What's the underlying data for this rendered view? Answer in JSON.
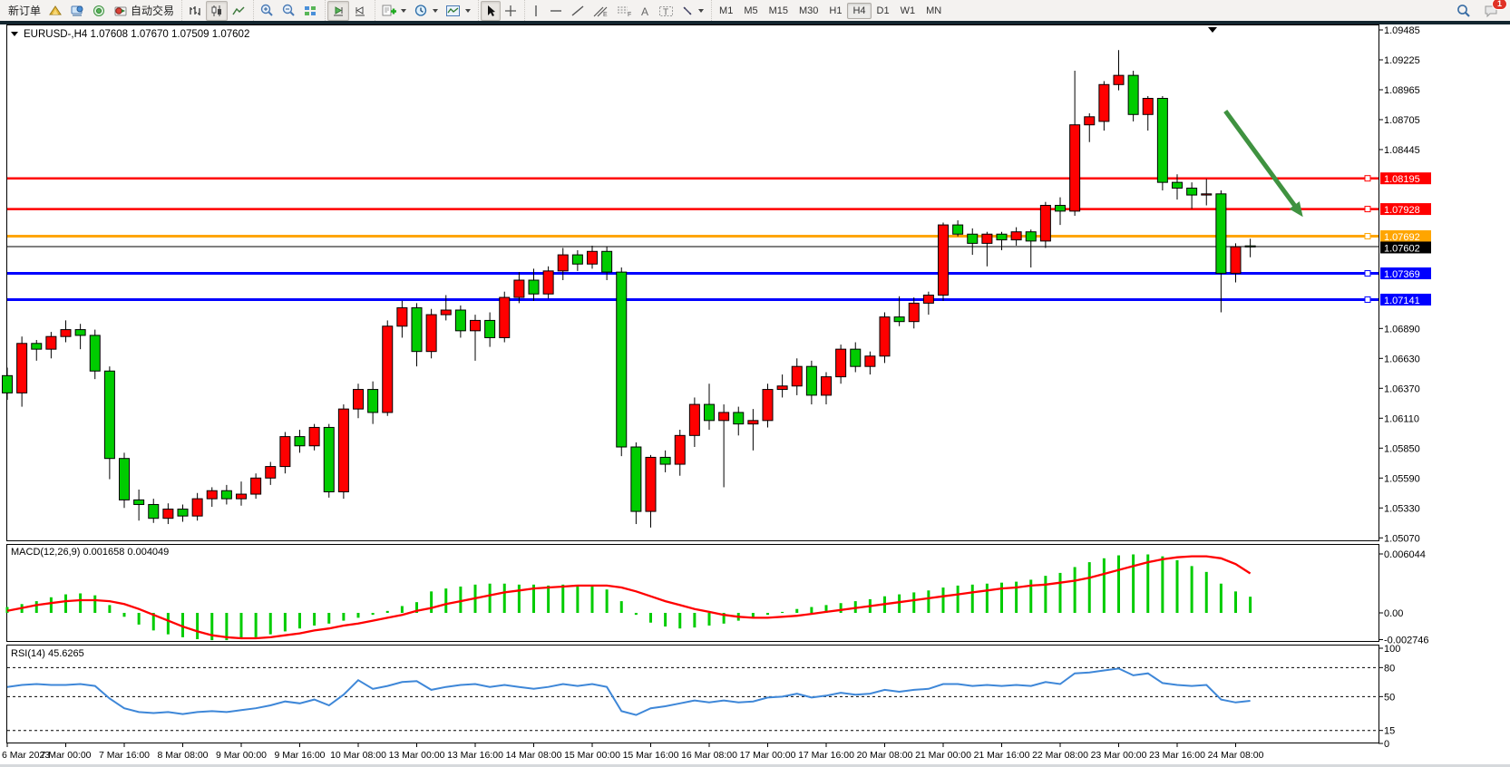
{
  "toolbar": {
    "new_order_label": "新订单",
    "autotrading_label": "自动交易",
    "timeframes": [
      "M1",
      "M5",
      "M15",
      "M30",
      "H1",
      "H4",
      "D1",
      "W1",
      "MN"
    ],
    "active_timeframe": "H4",
    "notification_count": "1",
    "icons": [
      "market-watch-icon",
      "metaeditor-icon",
      "signals-icon",
      "autotrading-icon",
      "bar-chart-icon",
      "candlestick-chart-icon",
      "line-chart-icon",
      "zoom-in-icon",
      "zoom-out-icon",
      "tile-windows-icon",
      "auto-scroll-icon",
      "chart-shift-icon",
      "indicators-icon",
      "periods-icon",
      "templates-icon",
      "cursor-icon",
      "crosshair-icon",
      "vertical-line-icon",
      "horizontal-line-icon",
      "trendline-icon",
      "channel-icon",
      "fibonacci-icon",
      "text-icon",
      "text-label-icon",
      "arrows-icon",
      "search-icon",
      "chat-icon"
    ]
  },
  "chart": {
    "title_symbol": "EURUSD-,H4",
    "title_ohlc": "1.07608 1.07670 1.07509 1.07602",
    "bid": "1.07602"
  },
  "macd_panel": {
    "label": "MACD(12,26,9) 0.001658 0.004049",
    "axis_max": "0.006044",
    "axis_zero": "0.00",
    "axis_min": "-0.002746"
  },
  "rsi_panel": {
    "label": "RSI(14) 45.6265",
    "axis_levels": [
      "100",
      "80",
      "50",
      "15",
      "0"
    ]
  },
  "chart_data": {
    "type": "candlestick",
    "symbol": "EURUSD",
    "period": "H4",
    "title": "EURUSD-,H4  O 1.07608  H 1.07670  L 1.07509  C 1.07602",
    "up_color": "#ff0000",
    "down_color": "#00cc00",
    "ylim": [
      1.0504,
      1.0953
    ],
    "price_ticks": [
      1.09485,
      1.09225,
      1.08965,
      1.08705,
      1.08445,
      1.0689,
      1.0663,
      1.0637,
      1.0611,
      1.0585,
      1.0559,
      1.0533,
      1.0507
    ],
    "price_tick_labels": [
      "1.09485",
      "1.09225",
      "1.08965",
      "1.08705",
      "1.08445",
      "1.06890",
      "1.06630",
      "1.06370",
      "1.06110",
      "1.05850",
      "1.05590",
      "1.05330",
      "1.05070"
    ],
    "levels": [
      {
        "price": 1.08195,
        "label": "1.08195",
        "color": "#ff0000",
        "width": 2.5
      },
      {
        "price": 1.07928,
        "label": "1.07928",
        "color": "#ff0000",
        "width": 2.5
      },
      {
        "price": 1.07692,
        "label": "1.07692",
        "color": "#ffa500",
        "width": 3
      },
      {
        "price": 1.07369,
        "label": "1.07369",
        "color": "#0000ff",
        "width": 3
      },
      {
        "price": 1.07141,
        "label": "1.07141",
        "color": "#0000ff",
        "width": 3
      }
    ],
    "bid_line": {
      "price": 1.07602,
      "label": "1.07602",
      "color": "#000000"
    },
    "candles": [
      [
        1.0648,
        1.0655,
        1.0627,
        1.0633
      ],
      [
        1.0633,
        1.0682,
        1.0621,
        1.0676
      ],
      [
        1.0676,
        1.0679,
        1.0661,
        1.0671
      ],
      [
        1.0671,
        1.0686,
        1.0663,
        1.0682
      ],
      [
        1.0682,
        1.0696,
        1.0677,
        1.0688
      ],
      [
        1.0688,
        1.0693,
        1.0671,
        1.0683
      ],
      [
        1.0683,
        1.0688,
        1.0645,
        1.0652
      ],
      [
        1.0652,
        1.0656,
        1.0558,
        1.0576
      ],
      [
        1.0576,
        1.0581,
        1.0533,
        1.054
      ],
      [
        1.054,
        1.0549,
        1.0522,
        1.0536
      ],
      [
        1.0536,
        1.0541,
        1.052,
        1.0524
      ],
      [
        1.0524,
        1.0537,
        1.0519,
        1.0532
      ],
      [
        1.0532,
        1.0536,
        1.0521,
        1.0526
      ],
      [
        1.0526,
        1.0546,
        1.0522,
        1.0541
      ],
      [
        1.0541,
        1.0551,
        1.0534,
        1.0548
      ],
      [
        1.0548,
        1.0553,
        1.0536,
        1.0541
      ],
      [
        1.0541,
        1.0556,
        1.0535,
        1.0545
      ],
      [
        1.0545,
        1.0563,
        1.0541,
        1.0559
      ],
      [
        1.0559,
        1.0573,
        1.0553,
        1.0569
      ],
      [
        1.0569,
        1.0599,
        1.0563,
        1.0595
      ],
      [
        1.0595,
        1.0601,
        1.0581,
        1.0587
      ],
      [
        1.0587,
        1.0606,
        1.0583,
        1.0603
      ],
      [
        1.0603,
        1.0606,
        1.0542,
        1.0547
      ],
      [
        1.0547,
        1.0623,
        1.0541,
        1.0619
      ],
      [
        1.0619,
        1.0641,
        1.0611,
        1.0636
      ],
      [
        1.0636,
        1.0643,
        1.0606,
        1.0616
      ],
      [
        1.0616,
        1.0696,
        1.0613,
        1.0691
      ],
      [
        1.0691,
        1.0713,
        1.0681,
        1.0707
      ],
      [
        1.0707,
        1.0711,
        1.0656,
        1.0669
      ],
      [
        1.0669,
        1.0706,
        1.0663,
        1.0701
      ],
      [
        1.0701,
        1.0718,
        1.0696,
        1.0705
      ],
      [
        1.0705,
        1.0709,
        1.0681,
        1.0687
      ],
      [
        1.0687,
        1.0701,
        1.0661,
        1.0696
      ],
      [
        1.0696,
        1.0703,
        1.0673,
        1.0681
      ],
      [
        1.0681,
        1.0721,
        1.0677,
        1.0716
      ],
      [
        1.0716,
        1.0738,
        1.0711,
        1.0731
      ],
      [
        1.0731,
        1.0741,
        1.0713,
        1.0719
      ],
      [
        1.0719,
        1.0743,
        1.0715,
        1.0739
      ],
      [
        1.0739,
        1.0759,
        1.0731,
        1.0753
      ],
      [
        1.0753,
        1.0757,
        1.0739,
        1.0745
      ],
      [
        1.0745,
        1.0761,
        1.0741,
        1.0756
      ],
      [
        1.0756,
        1.076,
        1.0731,
        1.0738
      ],
      [
        1.0738,
        1.0742,
        1.0578,
        1.0586
      ],
      [
        1.0586,
        1.059,
        1.0519,
        1.053
      ],
      [
        1.053,
        1.0579,
        1.0516,
        1.0577
      ],
      [
        1.0577,
        1.0583,
        1.0564,
        1.0571
      ],
      [
        1.0571,
        1.0601,
        1.0561,
        1.0596
      ],
      [
        1.0596,
        1.0629,
        1.0586,
        1.0623
      ],
      [
        1.0623,
        1.0641,
        1.0601,
        1.0609
      ],
      [
        1.0609,
        1.0623,
        1.0551,
        1.0616
      ],
      [
        1.0616,
        1.0621,
        1.0596,
        1.0606
      ],
      [
        1.0606,
        1.0619,
        1.0583,
        1.0609
      ],
      [
        1.0609,
        1.0641,
        1.0603,
        1.0636
      ],
      [
        1.0636,
        1.0649,
        1.0629,
        1.0639
      ],
      [
        1.0639,
        1.0663,
        1.0631,
        1.0656
      ],
      [
        1.0656,
        1.0661,
        1.0623,
        1.0631
      ],
      [
        1.0631,
        1.0651,
        1.0623,
        1.0647
      ],
      [
        1.0647,
        1.0675,
        1.0641,
        1.0671
      ],
      [
        1.0671,
        1.0677,
        1.0651,
        1.0656
      ],
      [
        1.0656,
        1.0669,
        1.0649,
        1.0665
      ],
      [
        1.0665,
        1.0703,
        1.0659,
        1.0699
      ],
      [
        1.0699,
        1.0717,
        1.0691,
        1.0695
      ],
      [
        1.0695,
        1.0716,
        1.0689,
        1.0711
      ],
      [
        1.0711,
        1.0721,
        1.0701,
        1.0718
      ],
      [
        1.0718,
        1.0781,
        1.0713,
        1.0779
      ],
      [
        1.0779,
        1.0783,
        1.0769,
        1.0771
      ],
      [
        1.0771,
        1.0776,
        1.0753,
        1.0763
      ],
      [
        1.0763,
        1.0773,
        1.0743,
        1.0771
      ],
      [
        1.0771,
        1.0773,
        1.0757,
        1.0766
      ],
      [
        1.0766,
        1.0777,
        1.0761,
        1.0773
      ],
      [
        1.0773,
        1.0775,
        1.0742,
        1.0765
      ],
      [
        1.0765,
        1.0799,
        1.0759,
        1.0796
      ],
      [
        1.0796,
        1.0803,
        1.0779,
        1.0791
      ],
      [
        1.0791,
        1.0913,
        1.0787,
        1.0866
      ],
      [
        1.0866,
        1.0876,
        1.0851,
        1.0873
      ],
      [
        1.0869,
        1.0904,
        1.0861,
        1.0901
      ],
      [
        1.0901,
        1.0931,
        1.0896,
        1.0909
      ],
      [
        1.0909,
        1.0913,
        1.0869,
        1.0875
      ],
      [
        1.0875,
        1.0891,
        1.0861,
        1.0889
      ],
      [
        1.0889,
        1.0891,
        1.0809,
        1.0816
      ],
      [
        1.0816,
        1.0823,
        1.0801,
        1.0811
      ],
      [
        1.0811,
        1.0816,
        1.0793,
        1.0805
      ],
      [
        1.0805,
        1.0819,
        1.0796,
        1.0806
      ],
      [
        1.0806,
        1.0809,
        1.0703,
        1.0737
      ],
      [
        1.0737,
        1.0763,
        1.0729,
        1.076
      ],
      [
        1.07608,
        1.0767,
        1.07509,
        1.07602
      ]
    ],
    "macd": {
      "params": [
        12,
        26,
        9
      ],
      "value": 0.001658,
      "signal_value": 0.004049,
      "histogram": [
        0.0006,
        0.0009,
        0.0012,
        0.0016,
        0.0019,
        0.002,
        0.0018,
        0.0008,
        -0.0004,
        -0.0012,
        -0.0018,
        -0.0022,
        -0.0025,
        -0.0027,
        -0.0028,
        -0.0028,
        -0.0027,
        -0.0025,
        -0.0022,
        -0.0019,
        -0.0016,
        -0.0013,
        -0.0011,
        -0.0008,
        -0.0005,
        -0.0002,
        0.0002,
        0.0007,
        0.0011,
        0.0022,
        0.0025,
        0.0027,
        0.0029,
        0.003,
        0.003,
        0.0029,
        0.0029,
        0.0028,
        0.0029,
        0.0028,
        0.0027,
        0.0024,
        0.0012,
        -0.0002,
        -0.001,
        -0.0014,
        -0.0016,
        -0.0015,
        -0.0013,
        -0.0011,
        -0.0008,
        -0.0005,
        -0.0002,
        0.0001,
        0.0004,
        0.0006,
        0.0008,
        0.001,
        0.0012,
        0.0014,
        0.0017,
        0.0019,
        0.0021,
        0.0023,
        0.0026,
        0.0028,
        0.0029,
        0.003,
        0.0031,
        0.0032,
        0.0034,
        0.0038,
        0.0041,
        0.0047,
        0.0052,
        0.0056,
        0.0059,
        0.006,
        0.006,
        0.0058,
        0.0054,
        0.0048,
        0.0042,
        0.003,
        0.0022,
        0.001658
      ],
      "signal": [
        0.0002,
        0.0005,
        0.0008,
        0.001,
        0.0012,
        0.0013,
        0.0013,
        0.0012,
        0.0009,
        0.0004,
        -0.0002,
        -0.0008,
        -0.0014,
        -0.0019,
        -0.0023,
        -0.0025,
        -0.0026,
        -0.0026,
        -0.0025,
        -0.0023,
        -0.0021,
        -0.0018,
        -0.0016,
        -0.0013,
        -0.0011,
        -0.0008,
        -0.0005,
        -0.0002,
        0.0002,
        0.0005,
        0.0009,
        0.0012,
        0.0015,
        0.0018,
        0.0021,
        0.0023,
        0.0025,
        0.0026,
        0.0027,
        0.0028,
        0.0028,
        0.0028,
        0.0026,
        0.0022,
        0.0017,
        0.0012,
        0.0008,
        0.0004,
        0.0001,
        -0.0002,
        -0.0004,
        -0.0005,
        -0.0005,
        -0.0004,
        -0.0003,
        -0.0001,
        0.0001,
        0.0003,
        0.0005,
        0.0007,
        0.0009,
        0.0011,
        0.0013,
        0.0015,
        0.0017,
        0.0019,
        0.0021,
        0.0023,
        0.0025,
        0.0026,
        0.0028,
        0.0029,
        0.0031,
        0.0033,
        0.0036,
        0.004,
        0.0044,
        0.0048,
        0.0052,
        0.0055,
        0.0057,
        0.0058,
        0.0058,
        0.0056,
        0.005,
        0.004049
      ]
    },
    "rsi": {
      "period": 14,
      "value": 45.6265,
      "levels": [
        80,
        50,
        15
      ],
      "values": [
        60,
        62,
        63,
        62,
        62,
        63,
        61,
        48,
        38,
        34,
        33,
        34,
        32,
        34,
        35,
        34,
        36,
        38,
        41,
        45,
        43,
        47,
        41,
        52,
        67,
        58,
        61,
        65,
        66,
        57,
        60,
        62,
        63,
        60,
        62,
        60,
        58,
        60,
        63,
        61,
        63,
        60,
        35,
        31,
        38,
        40,
        43,
        46,
        44,
        46,
        44,
        45,
        49,
        50,
        53,
        49,
        51,
        54,
        52,
        53,
        57,
        55,
        57,
        58,
        63,
        63,
        61,
        62,
        61,
        62,
        61,
        65,
        63,
        74,
        75,
        77,
        79,
        72,
        74,
        64,
        62,
        61,
        62,
        47,
        44,
        45.6
      ]
    },
    "annotations": [
      {
        "type": "arrow",
        "from_bar": 83.3,
        "from_price": 1.0878,
        "to_bar": 88.6,
        "to_price": 1.0786,
        "color": "#3f9240",
        "width": 5
      }
    ],
    "time_axis_labels": [
      "6 Mar 2023",
      "7 Mar 00:00",
      "7 Mar 16:00",
      "8 Mar 08:00",
      "9 Mar 00:00",
      "9 Mar 16:00",
      "10 Mar 08:00",
      "13 Mar 00:00",
      "13 Mar 16:00",
      "14 Mar 08:00",
      "15 Mar 00:00",
      "15 Mar 16:00",
      "16 Mar 08:00",
      "17 Mar 00:00",
      "17 Mar 16:00",
      "20 Mar 08:00",
      "21 Mar 00:00",
      "21 Mar 16:00",
      "22 Mar 08:00",
      "23 Mar 00:00",
      "23 Mar 16:00",
      "24 Mar 08:00"
    ]
  }
}
